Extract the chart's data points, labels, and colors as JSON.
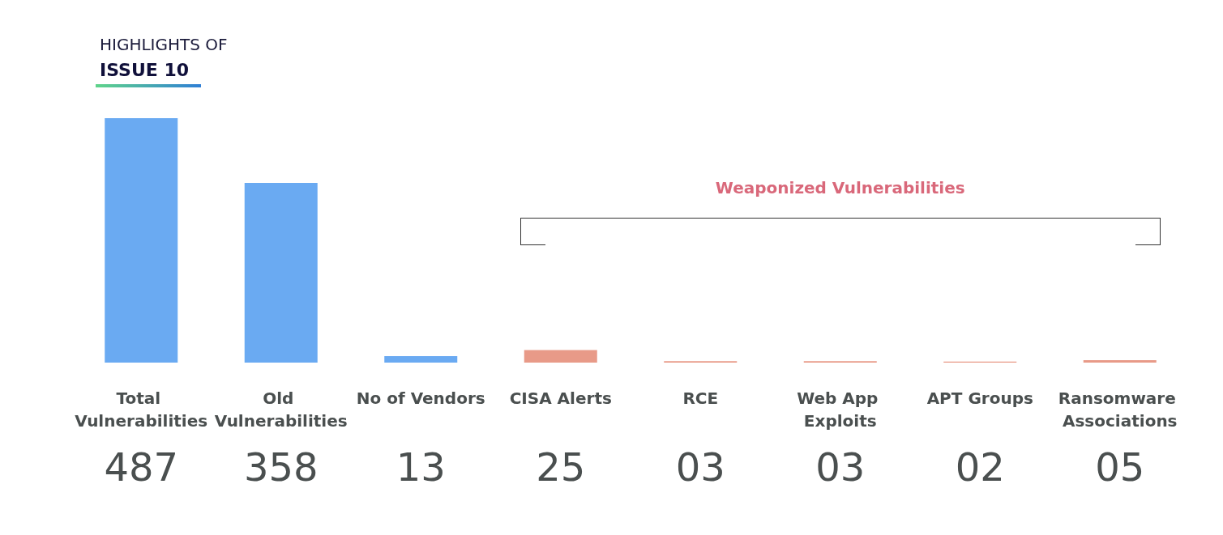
{
  "chart_data": {
    "type": "bar",
    "title": "HIGHLIGHTS OF",
    "subtitle": "ISSUE 10",
    "categories": [
      "Total Vulnerabilities",
      "Old Vulnerabilities",
      "No of Vendors",
      "CISA Alerts",
      "RCE",
      "Web App Exploits",
      "APT Groups",
      "Ransomware Associations"
    ],
    "values": [
      487,
      358,
      13,
      25,
      3,
      3,
      2,
      5
    ],
    "value_labels": [
      "487",
      "358",
      "13",
      "25",
      "03",
      "03",
      "02",
      "05"
    ],
    "colors": [
      "#6aaaf2",
      "#6aaaf2",
      "#6aaaf2",
      "#e89a88",
      "#e89a88",
      "#e89a88",
      "#e89a88",
      "#e89a88"
    ],
    "annotations": [
      "Weaponized Vulnerabilities"
    ]
  }
}
